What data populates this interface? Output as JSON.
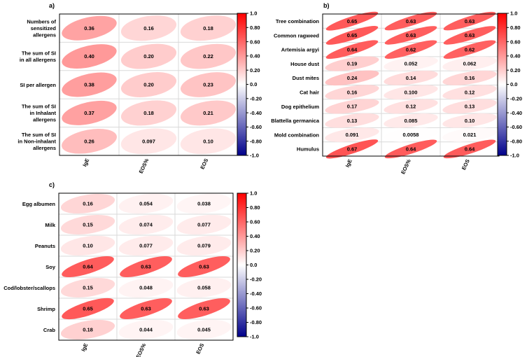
{
  "chart_data": [
    {
      "type": "heatmap",
      "style": "correlation-ellipse",
      "panel_label": "a)",
      "rows": [
        [
          "Numbers of",
          "sensitized",
          "allergens"
        ],
        [
          "The sum of SI",
          "in all allergens"
        ],
        [
          "SI per allergen"
        ],
        [
          "The sum of SI",
          "in Inhalant",
          "allergens"
        ],
        [
          "The sum of SI",
          "in Non-inhalant",
          "allergens"
        ]
      ],
      "columns": [
        "IgE",
        "EOS%",
        "EOS"
      ],
      "values": [
        [
          0.36,
          0.16,
          0.18
        ],
        [
          0.4,
          0.2,
          0.22
        ],
        [
          0.38,
          0.2,
          0.23
        ],
        [
          0.37,
          0.18,
          0.21
        ],
        [
          0.26,
          0.097,
          0.1
        ]
      ],
      "value_labels": [
        [
          "0.36",
          "0.16",
          "0.18"
        ],
        [
          "0.40",
          "0.20",
          "0.22"
        ],
        [
          "0.38",
          "0.20",
          "0.23"
        ],
        [
          "0.37",
          "0.18",
          "0.21"
        ],
        [
          "0.26",
          "0.097",
          "0.10"
        ]
      ],
      "colorbar": {
        "range": [
          -1,
          1
        ],
        "ticks": [
          "1.0",
          "0.80",
          "0.60",
          "0.40",
          "0.20",
          "0.0",
          "-0.20",
          "-0.40",
          "-0.60",
          "-0.80",
          "-1.0"
        ]
      }
    },
    {
      "type": "heatmap",
      "style": "correlation-ellipse",
      "panel_label": "b)",
      "rows": [
        [
          "Tree combination"
        ],
        [
          "Common ragweed"
        ],
        [
          "Artemisia argyi"
        ],
        [
          "House dust"
        ],
        [
          "Dust mites"
        ],
        [
          "Cat hair"
        ],
        [
          "Dog epithelium"
        ],
        [
          "Blattella germanica"
        ],
        [
          "Mold combination"
        ],
        [
          "Humulus"
        ]
      ],
      "columns": [
        "IgE",
        "EOS%",
        "EOS"
      ],
      "values": [
        [
          0.65,
          0.63,
          0.63
        ],
        [
          0.65,
          0.63,
          0.63
        ],
        [
          0.64,
          0.62,
          0.62
        ],
        [
          0.19,
          0.052,
          0.062
        ],
        [
          0.24,
          0.14,
          0.16
        ],
        [
          0.16,
          0.1,
          0.12
        ],
        [
          0.17,
          0.12,
          0.13
        ],
        [
          0.13,
          0.085,
          0.1
        ],
        [
          0.091,
          0.0058,
          0.021
        ],
        [
          0.67,
          0.64,
          0.64
        ]
      ],
      "value_labels": [
        [
          "0.65",
          "0.63",
          "0.63"
        ],
        [
          "0.65",
          "0.63",
          "0.63"
        ],
        [
          "0.64",
          "0.62",
          "0.62"
        ],
        [
          "0.19",
          "0.052",
          "0.062"
        ],
        [
          "0.24",
          "0.14",
          "0.16"
        ],
        [
          "0.16",
          "0.100",
          "0.12"
        ],
        [
          "0.17",
          "0.12",
          "0.13"
        ],
        [
          "0.13",
          "0.085",
          "0.10"
        ],
        [
          "0.091",
          "0.0058",
          "0.021"
        ],
        [
          "0.67",
          "0.64",
          "0.64"
        ]
      ],
      "colorbar": {
        "range": [
          -1,
          1
        ],
        "ticks": [
          "1.0",
          "0.80",
          "0.60",
          "0.40",
          "0.20",
          "0.0",
          "-0.20",
          "-0.40",
          "-0.60",
          "-0.80",
          "-1.0"
        ]
      }
    },
    {
      "type": "heatmap",
      "style": "correlation-ellipse",
      "panel_label": "c)",
      "rows": [
        [
          "Egg albumen"
        ],
        [
          "Milk"
        ],
        [
          "Peanuts"
        ],
        [
          "Soy"
        ],
        [
          "Cod/lobster/scallops"
        ],
        [
          "Shrimp"
        ],
        [
          "Crab"
        ]
      ],
      "columns": [
        "IgE",
        "EOS%",
        "EOS"
      ],
      "values": [
        [
          0.16,
          0.054,
          0.038
        ],
        [
          0.15,
          0.074,
          0.077
        ],
        [
          0.1,
          0.077,
          0.079
        ],
        [
          0.64,
          0.63,
          0.63
        ],
        [
          0.15,
          0.048,
          0.058
        ],
        [
          0.65,
          0.63,
          0.63
        ],
        [
          0.18,
          0.044,
          0.045
        ]
      ],
      "value_labels": [
        [
          "0.16",
          "0.054",
          "0.038"
        ],
        [
          "0.15",
          "0.074",
          "0.077"
        ],
        [
          "0.10",
          "0.077",
          "0.079"
        ],
        [
          "0.64",
          "0.63",
          "0.63"
        ],
        [
          "0.15",
          "0.048",
          "0.058"
        ],
        [
          "0.65",
          "0.63",
          "0.63"
        ],
        [
          "0.18",
          "0.044",
          "0.045"
        ]
      ],
      "colorbar": {
        "range": [
          -1,
          1
        ],
        "ticks": [
          "1.0",
          "0.80",
          "0.60",
          "0.40",
          "0.20",
          "0.0",
          "-0.20",
          "-0.40",
          "-0.60",
          "-0.80",
          "-1.0"
        ]
      }
    }
  ],
  "colors": {
    "positive": "#ff0000",
    "neutral": "#ffffff",
    "negative": "#00008b",
    "grid": "#d9d9d9",
    "frame": "#000000"
  }
}
